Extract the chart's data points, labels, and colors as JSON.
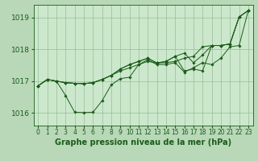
{
  "background_color": "#b8d8b8",
  "plot_bg_color": "#cce8cc",
  "grid_color": "#99bb99",
  "line_color": "#1a5c1a",
  "xlabel": "Graphe pression niveau de la mer (hPa)",
  "xlabel_fontsize": 7,
  "ylabel_fontsize": 6.5,
  "tick_fontsize": 5.5,
  "xlim": [
    -0.5,
    23.5
  ],
  "ylim": [
    1015.6,
    1019.4
  ],
  "yticks": [
    1016,
    1017,
    1018,
    1019
  ],
  "xticks": [
    0,
    1,
    2,
    3,
    4,
    5,
    6,
    7,
    8,
    9,
    10,
    11,
    12,
    13,
    14,
    15,
    16,
    17,
    18,
    19,
    20,
    21,
    22,
    23
  ],
  "series": [
    [
      1016.85,
      1017.05,
      1017.0,
      1016.95,
      1016.93,
      1016.92,
      1016.95,
      1017.05,
      1017.18,
      1017.32,
      1017.42,
      1017.52,
      1017.62,
      1017.57,
      1017.58,
      1017.62,
      1017.72,
      1017.78,
      1018.08,
      1018.12,
      1018.12,
      1018.17,
      1019.02,
      1019.22
    ],
    [
      1016.85,
      1017.05,
      1017.0,
      1016.55,
      1016.02,
      1016.01,
      1016.02,
      1016.38,
      1016.88,
      1017.08,
      1017.12,
      1017.52,
      1017.67,
      1017.52,
      1017.52,
      1017.58,
      1017.28,
      1017.42,
      1017.58,
      1017.52,
      1017.72,
      1018.08,
      1018.12,
      1019.22
    ],
    [
      1016.85,
      1017.05,
      1017.0,
      1016.95,
      1016.93,
      1016.92,
      1016.95,
      1017.05,
      1017.18,
      1017.38,
      1017.52,
      1017.62,
      1017.72,
      1017.57,
      1017.62,
      1017.78,
      1017.88,
      1017.58,
      1017.82,
      1018.12,
      1018.12,
      1018.17,
      1019.02,
      1019.22
    ],
    [
      1016.85,
      1017.05,
      1017.0,
      1016.95,
      1016.93,
      1016.92,
      1016.95,
      1017.05,
      1017.18,
      1017.38,
      1017.52,
      1017.62,
      1017.72,
      1017.57,
      1017.62,
      1017.78,
      1017.32,
      1017.38,
      1017.32,
      1018.12,
      1018.12,
      1018.17,
      1019.02,
      1019.22
    ]
  ],
  "linewidth": 0.7,
  "markersize": 1.8
}
